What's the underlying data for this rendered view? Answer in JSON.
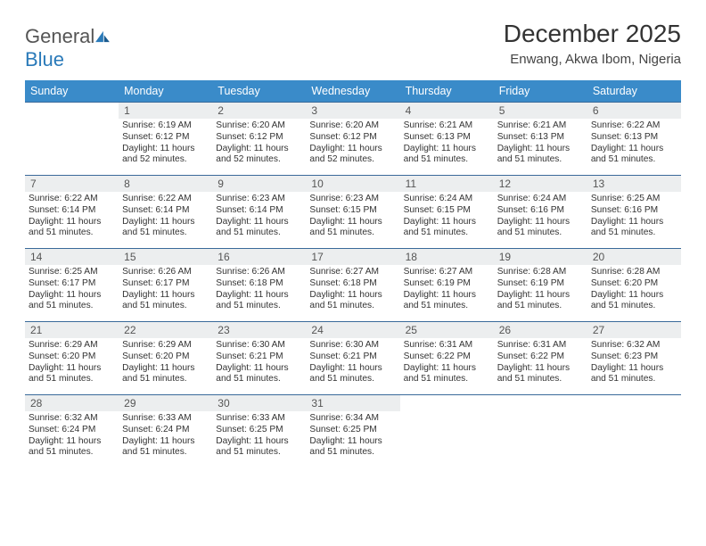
{
  "logo": {
    "text1": "General",
    "text2": "Blue"
  },
  "title": "December 2025",
  "location": "Enwang, Akwa Ibom, Nigeria",
  "colors": {
    "header_bg": "#3a8bc9",
    "header_text": "#ffffff",
    "daynum_bg": "#eceeef",
    "row_border": "#3a6a9a",
    "logo_gray": "#555555",
    "logo_blue": "#2a7ab9"
  },
  "dayNames": [
    "Sunday",
    "Monday",
    "Tuesday",
    "Wednesday",
    "Thursday",
    "Friday",
    "Saturday"
  ],
  "startOffset": 1,
  "days": [
    {
      "n": 1,
      "sr": "6:19 AM",
      "ss": "6:12 PM",
      "dl": "11 hours and 52 minutes."
    },
    {
      "n": 2,
      "sr": "6:20 AM",
      "ss": "6:12 PM",
      "dl": "11 hours and 52 minutes."
    },
    {
      "n": 3,
      "sr": "6:20 AM",
      "ss": "6:12 PM",
      "dl": "11 hours and 52 minutes."
    },
    {
      "n": 4,
      "sr": "6:21 AM",
      "ss": "6:13 PM",
      "dl": "11 hours and 51 minutes."
    },
    {
      "n": 5,
      "sr": "6:21 AM",
      "ss": "6:13 PM",
      "dl": "11 hours and 51 minutes."
    },
    {
      "n": 6,
      "sr": "6:22 AM",
      "ss": "6:13 PM",
      "dl": "11 hours and 51 minutes."
    },
    {
      "n": 7,
      "sr": "6:22 AM",
      "ss": "6:14 PM",
      "dl": "11 hours and 51 minutes."
    },
    {
      "n": 8,
      "sr": "6:22 AM",
      "ss": "6:14 PM",
      "dl": "11 hours and 51 minutes."
    },
    {
      "n": 9,
      "sr": "6:23 AM",
      "ss": "6:14 PM",
      "dl": "11 hours and 51 minutes."
    },
    {
      "n": 10,
      "sr": "6:23 AM",
      "ss": "6:15 PM",
      "dl": "11 hours and 51 minutes."
    },
    {
      "n": 11,
      "sr": "6:24 AM",
      "ss": "6:15 PM",
      "dl": "11 hours and 51 minutes."
    },
    {
      "n": 12,
      "sr": "6:24 AM",
      "ss": "6:16 PM",
      "dl": "11 hours and 51 minutes."
    },
    {
      "n": 13,
      "sr": "6:25 AM",
      "ss": "6:16 PM",
      "dl": "11 hours and 51 minutes."
    },
    {
      "n": 14,
      "sr": "6:25 AM",
      "ss": "6:17 PM",
      "dl": "11 hours and 51 minutes."
    },
    {
      "n": 15,
      "sr": "6:26 AM",
      "ss": "6:17 PM",
      "dl": "11 hours and 51 minutes."
    },
    {
      "n": 16,
      "sr": "6:26 AM",
      "ss": "6:18 PM",
      "dl": "11 hours and 51 minutes."
    },
    {
      "n": 17,
      "sr": "6:27 AM",
      "ss": "6:18 PM",
      "dl": "11 hours and 51 minutes."
    },
    {
      "n": 18,
      "sr": "6:27 AM",
      "ss": "6:19 PM",
      "dl": "11 hours and 51 minutes."
    },
    {
      "n": 19,
      "sr": "6:28 AM",
      "ss": "6:19 PM",
      "dl": "11 hours and 51 minutes."
    },
    {
      "n": 20,
      "sr": "6:28 AM",
      "ss": "6:20 PM",
      "dl": "11 hours and 51 minutes."
    },
    {
      "n": 21,
      "sr": "6:29 AM",
      "ss": "6:20 PM",
      "dl": "11 hours and 51 minutes."
    },
    {
      "n": 22,
      "sr": "6:29 AM",
      "ss": "6:20 PM",
      "dl": "11 hours and 51 minutes."
    },
    {
      "n": 23,
      "sr": "6:30 AM",
      "ss": "6:21 PM",
      "dl": "11 hours and 51 minutes."
    },
    {
      "n": 24,
      "sr": "6:30 AM",
      "ss": "6:21 PM",
      "dl": "11 hours and 51 minutes."
    },
    {
      "n": 25,
      "sr": "6:31 AM",
      "ss": "6:22 PM",
      "dl": "11 hours and 51 minutes."
    },
    {
      "n": 26,
      "sr": "6:31 AM",
      "ss": "6:22 PM",
      "dl": "11 hours and 51 minutes."
    },
    {
      "n": 27,
      "sr": "6:32 AM",
      "ss": "6:23 PM",
      "dl": "11 hours and 51 minutes."
    },
    {
      "n": 28,
      "sr": "6:32 AM",
      "ss": "6:24 PM",
      "dl": "11 hours and 51 minutes."
    },
    {
      "n": 29,
      "sr": "6:33 AM",
      "ss": "6:24 PM",
      "dl": "11 hours and 51 minutes."
    },
    {
      "n": 30,
      "sr": "6:33 AM",
      "ss": "6:25 PM",
      "dl": "11 hours and 51 minutes."
    },
    {
      "n": 31,
      "sr": "6:34 AM",
      "ss": "6:25 PM",
      "dl": "11 hours and 51 minutes."
    }
  ],
  "labels": {
    "sunrise": "Sunrise:",
    "sunset": "Sunset:",
    "daylight": "Daylight:"
  }
}
